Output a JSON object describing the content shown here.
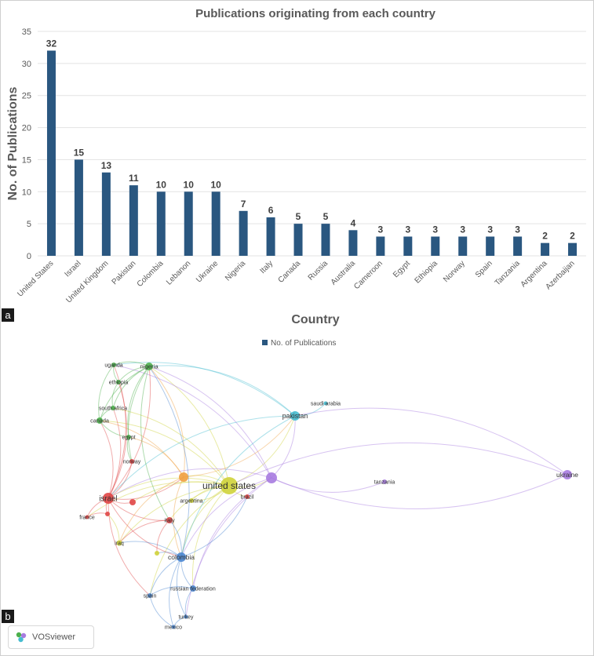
{
  "panel_a_label": "a",
  "panel_b_label": "b",
  "chart_data": [
    {
      "type": "bar",
      "title": "Publications originating from each country",
      "xlabel": "Country",
      "ylabel": "No. of Publications",
      "ylim": [
        0,
        35
      ],
      "yticks": [
        0,
        5,
        10,
        15,
        20,
        25,
        30,
        35
      ],
      "grid": true,
      "legend": "bottom",
      "categories": [
        "United States",
        "Israel",
        "United Kingdom",
        "Pakistan",
        "Colombia",
        "Lebanon",
        "Ukraine",
        "Nigeria",
        "Italy",
        "Canada",
        "Russia",
        "Australia",
        "Cameroon",
        "Egypt",
        "Ethiopia",
        "Norway",
        "Spain",
        "Tanzania",
        "Argentina",
        "Azerbaijan"
      ],
      "series": [
        {
          "name": "No. of Publications",
          "values": [
            32,
            15,
            13,
            11,
            10,
            10,
            10,
            7,
            6,
            5,
            5,
            4,
            3,
            3,
            3,
            3,
            3,
            3,
            2,
            2
          ]
        }
      ],
      "bar_color": "#2a5780"
    },
    {
      "type": "network",
      "source_label": "VOSviewer",
      "clusters": {
        "red": "#e04646",
        "green": "#4cb04c",
        "blue": "#4a86d0",
        "yellow": "#cfd33a",
        "purple": "#a77be0",
        "cyan": "#46bcd0",
        "orange": "#f0a040"
      },
      "nodes": [
        {
          "label": "united states",
          "cluster": "yellow",
          "weight": 32
        },
        {
          "label": "israel",
          "cluster": "red",
          "weight": 15
        },
        {
          "label": "",
          "cluster": "orange",
          "weight": 13
        },
        {
          "label": "pakistan",
          "cluster": "cyan",
          "weight": 11
        },
        {
          "label": "colombia",
          "cluster": "blue",
          "weight": 10
        },
        {
          "label": "",
          "cluster": "purple",
          "weight": 10
        },
        {
          "label": "ukraine",
          "cluster": "purple",
          "weight": 10
        },
        {
          "label": "nigeria",
          "cluster": "green",
          "weight": 7
        },
        {
          "label": "italy",
          "cluster": "red",
          "weight": 6
        },
        {
          "label": "canada",
          "cluster": "green",
          "weight": 5
        },
        {
          "label": "iraq",
          "cluster": "yellow",
          "weight": 4
        },
        {
          "label": "russian federation",
          "cluster": "blue",
          "weight": 5
        },
        {
          "label": "uganda",
          "cluster": "green",
          "weight": 3
        },
        {
          "label": "ethiopia",
          "cluster": "green",
          "weight": 3
        },
        {
          "label": "south africa",
          "cluster": "green",
          "weight": 3
        },
        {
          "label": "egypt",
          "cluster": "green",
          "weight": 3
        },
        {
          "label": "norway",
          "cluster": "red",
          "weight": 3
        },
        {
          "label": "spain",
          "cluster": "blue",
          "weight": 3
        },
        {
          "label": "saudi arabia",
          "cluster": "cyan",
          "weight": 2
        },
        {
          "label": "tanzania",
          "cluster": "purple",
          "weight": 3
        },
        {
          "label": "argentina",
          "cluster": "yellow",
          "weight": 2
        },
        {
          "label": "brazil",
          "cluster": "red",
          "weight": 2
        },
        {
          "label": "france",
          "cluster": "red",
          "weight": 2
        },
        {
          "label": "turkey",
          "cluster": "blue",
          "weight": 2
        },
        {
          "label": "mexico",
          "cluster": "blue",
          "weight": 2
        },
        {
          "label": "",
          "cluster": "red",
          "weight": 3
        },
        {
          "label": "",
          "cluster": "red",
          "weight": 2
        },
        {
          "label": "",
          "cluster": "yellow",
          "weight": 2
        }
      ]
    }
  ]
}
